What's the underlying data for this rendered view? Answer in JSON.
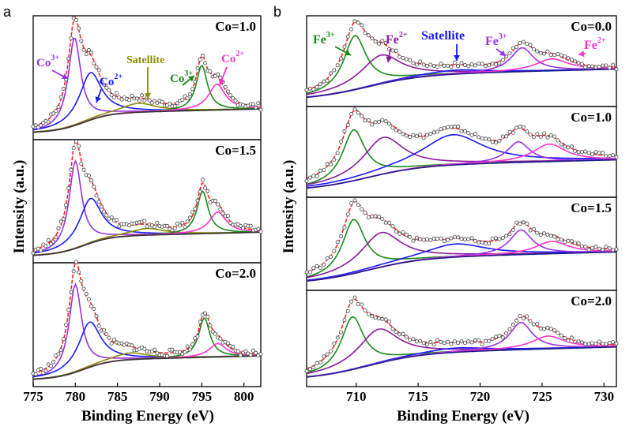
{
  "panel_labels": [
    "a",
    "b"
  ],
  "chart_data": [
    {
      "type": "line",
      "panel": "a",
      "xlabel": "Binding Energy (eV)",
      "ylabel": "Intensity (a.u.)",
      "xlim": [
        775,
        802
      ],
      "x_ticks": [
        775,
        780,
        785,
        790,
        795,
        800
      ],
      "x_tick_labels": [
        "775",
        "780",
        "785",
        "790",
        "795",
        "800"
      ],
      "colors": {
        "Co3+": "#9b30e8",
        "Co2+": "#1a1aff",
        "Satellite": "#8b8b00",
        "Co3+ (2p1/2)": "#1a8a1a",
        "Co2+ (2p1/2)": "#ff33cc",
        "envelope": "#ff2020",
        "background": "#333333",
        "data": "#555555"
      },
      "annotations": [
        {
          "base": "Co",
          "sup": "3+",
          "color": "#9b30e8"
        },
        {
          "base": "Co",
          "sup": "2+",
          "color": "#1a1aff"
        },
        {
          "base": "Satellite",
          "sup": "",
          "color": "#8b8b00"
        },
        {
          "base": "Co",
          "sup": "3+",
          "color": "#1a8a1a"
        },
        {
          "base": "Co",
          "sup": "2+",
          "color": "#ff33cc"
        }
      ],
      "subplots": [
        {
          "label": "Co=1.0",
          "peaks": [
            {
              "name": "Co3+",
              "center": 779.9,
              "height": 0.78
            },
            {
              "name": "Co2+",
              "center": 781.8,
              "height": 0.42
            },
            {
              "name": "Satellite",
              "center": 787.5,
              "height": 0.08
            },
            {
              "name": "Co3+",
              "center": 795.0,
              "height": 0.4
            },
            {
              "name": "Co2+",
              "center": 796.8,
              "height": 0.23
            }
          ]
        },
        {
          "label": "Co=1.5",
          "peaks": [
            {
              "name": "Co3+",
              "center": 780.0,
              "height": 0.78
            },
            {
              "name": "Co2+",
              "center": 781.8,
              "height": 0.4
            },
            {
              "name": "Satellite",
              "center": 788.5,
              "height": 0.06
            },
            {
              "name": "Co3+",
              "center": 795.1,
              "height": 0.38
            },
            {
              "name": "Co2+",
              "center": 796.9,
              "height": 0.19
            }
          ]
        },
        {
          "label": "Co=2.0",
          "peaks": [
            {
              "name": "Co3+",
              "center": 780.0,
              "height": 0.78
            },
            {
              "name": "Co2+",
              "center": 781.7,
              "height": 0.4
            },
            {
              "name": "Satellite",
              "center": 786.5,
              "height": 0.06
            },
            {
              "name": "Co3+",
              "center": 795.3,
              "height": 0.35
            },
            {
              "name": "Co2+",
              "center": 796.9,
              "height": 0.12
            }
          ]
        }
      ]
    },
    {
      "type": "line",
      "panel": "b",
      "xlabel": "Binding Energy (eV)",
      "ylabel": "Intensity (a.u.)",
      "xlim": [
        706,
        731
      ],
      "x_ticks": [
        710,
        715,
        720,
        725,
        730
      ],
      "x_tick_labels": [
        "710",
        "715",
        "720",
        "725",
        "730"
      ],
      "colors": {
        "Fe3+": "#1a8a1a",
        "Fe2+": "#8b1a9b",
        "Satellite": "#1a1aff",
        "Fe3+ (2p1/2)": "#9b30e8",
        "Fe2+ (2p1/2)": "#ff33cc",
        "envelope": "#ff2020",
        "background": "#1a1a8b",
        "data": "#555555"
      },
      "annotations": [
        {
          "base": "Fe",
          "sup": "3+",
          "color": "#1a8a1a"
        },
        {
          "base": "Fe",
          "sup": "2+",
          "color": "#8b1a9b"
        },
        {
          "base": "Satellite",
          "sup": "",
          "color": "#1a1aff"
        },
        {
          "base": "Fe",
          "sup": "3+",
          "color": "#9b30e8"
        },
        {
          "base": "Fe",
          "sup": "2+",
          "color": "#ff33cc"
        }
      ],
      "subplots": [
        {
          "label": "Co=0.0",
          "peaks": [
            {
              "name": "Fe3+",
              "center": 709.9,
              "height": 0.68
            },
            {
              "name": "Fe2+",
              "center": 712.0,
              "height": 0.36
            },
            {
              "name": "Satellite",
              "center": 718.0,
              "height": 0.05
            },
            {
              "name": "Fe3+",
              "center": 723.4,
              "height": 0.3
            },
            {
              "name": "Fe2+",
              "center": 725.8,
              "height": 0.15
            }
          ]
        },
        {
          "label": "Co=1.0",
          "peaks": [
            {
              "name": "Fe3+",
              "center": 709.8,
              "height": 0.64
            },
            {
              "name": "Fe2+",
              "center": 712.2,
              "height": 0.46
            },
            {
              "name": "Satellite",
              "center": 717.8,
              "height": 0.38
            },
            {
              "name": "Fe3+",
              "center": 723.1,
              "height": 0.26
            },
            {
              "name": "Fe2+",
              "center": 725.6,
              "height": 0.22
            }
          ]
        },
        {
          "label": "Co=1.5",
          "peaks": [
            {
              "name": "Fe3+",
              "center": 709.8,
              "height": 0.66
            },
            {
              "name": "Fe2+",
              "center": 712.0,
              "height": 0.42
            },
            {
              "name": "Satellite",
              "center": 718.0,
              "height": 0.16
            },
            {
              "name": "Fe3+",
              "center": 723.3,
              "height": 0.3
            },
            {
              "name": "Fe2+",
              "center": 725.8,
              "height": 0.15
            }
          ]
        },
        {
          "label": "Co=2.0",
          "peaks": [
            {
              "name": "Fe3+",
              "center": 709.7,
              "height": 0.62
            },
            {
              "name": "Fe2+",
              "center": 711.8,
              "height": 0.4
            },
            {
              "name": "Satellite",
              "center": 718.0,
              "height": 0.05
            },
            {
              "name": "Fe3+",
              "center": 723.3,
              "height": 0.32
            },
            {
              "name": "Fe2+",
              "center": 725.5,
              "height": 0.15
            }
          ]
        }
      ]
    }
  ]
}
